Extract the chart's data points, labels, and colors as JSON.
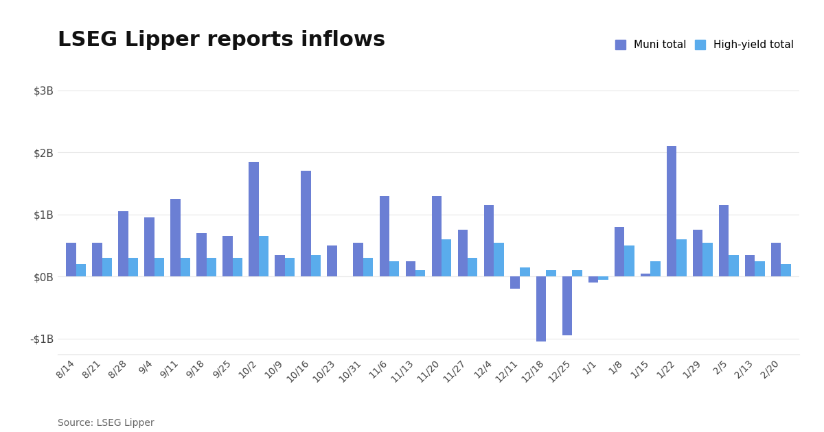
{
  "title": "LSEG Lipper reports inflows",
  "source": "Source: LSEG Lipper",
  "legend_labels": [
    "Muni total",
    "High-yield total"
  ],
  "muni_color": "#6b7fd4",
  "hy_color": "#5aacec",
  "categories": [
    "8/14",
    "8/21",
    "8/28",
    "9/4",
    "9/11",
    "9/18",
    "9/25",
    "10/2",
    "10/9",
    "10/16",
    "10/23",
    "10/31",
    "11/6",
    "11/13",
    "11/20",
    "11/27",
    "12/4",
    "12/11",
    "12/18",
    "12/25",
    "1/1",
    "1/8",
    "1/15",
    "1/22",
    "1/29",
    "2/5",
    "2/13",
    "2/20"
  ],
  "muni_values": [
    0.55,
    0.55,
    1.05,
    0.95,
    1.25,
    0.7,
    0.65,
    1.85,
    0.35,
    1.7,
    0.5,
    0.55,
    1.3,
    0.25,
    1.3,
    0.75,
    1.15,
    -0.2,
    -1.05,
    -0.95,
    -0.1,
    0.8,
    0.05,
    2.1,
    0.75,
    1.15,
    0.35,
    0.55
  ],
  "hy_values": [
    0.2,
    0.3,
    0.3,
    0.3,
    0.3,
    0.3,
    0.3,
    0.65,
    0.3,
    0.35,
    0.0,
    0.3,
    0.25,
    0.1,
    0.6,
    0.3,
    0.55,
    0.15,
    0.1,
    0.1,
    -0.05,
    0.5,
    0.25,
    0.6,
    0.55,
    0.35,
    0.25,
    0.2
  ],
  "ylim": [
    -1.25,
    3.2
  ],
  "yticks": [
    -1.0,
    0.0,
    1.0,
    2.0,
    3.0
  ],
  "ytick_labels": [
    "-$1B",
    "$0B",
    "$1B",
    "$2B",
    "$3B"
  ],
  "background_color": "#ffffff",
  "grid_color": "#e8e8e8",
  "bar_width": 0.38,
  "title_fontsize": 22,
  "tick_fontsize": 10,
  "legend_fontsize": 11,
  "source_fontsize": 10
}
